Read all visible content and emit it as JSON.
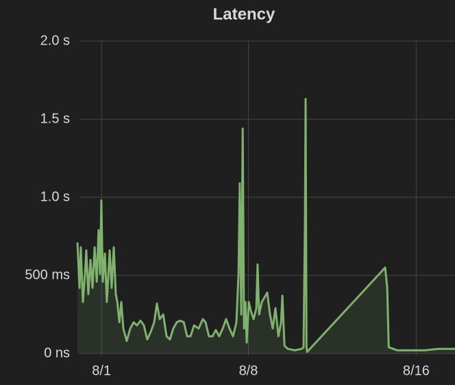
{
  "chart_data": {
    "type": "line",
    "title": "Latency",
    "x": [
      -0.15,
      -0.05,
      0.01,
      0.11,
      0.21,
      0.27,
      0.37,
      0.47,
      0.57,
      0.67,
      0.77,
      0.86,
      0.93,
      0.99,
      1.06,
      1.16,
      1.25,
      1.39,
      1.48,
      1.58,
      1.68,
      1.75,
      1.85,
      1.94,
      2.04,
      2.2,
      2.37,
      2.53,
      2.69,
      2.86,
      3.02,
      3.18,
      3.35,
      3.51,
      3.64,
      3.77,
      3.94,
      4.1,
      4.26,
      4.42,
      4.59,
      4.75,
      4.92,
      5.08,
      5.24,
      5.41,
      5.63,
      5.83,
      5.96,
      6.12,
      6.29,
      6.45,
      6.61,
      6.78,
      6.94,
      7.1,
      7.27,
      7.43,
      7.53,
      7.59,
      7.66,
      7.73,
      7.79,
      7.86,
      7.92,
      8.02,
      8.12,
      8.25,
      8.38,
      8.44,
      8.51,
      8.64,
      8.77,
      8.9,
      9.03,
      9.16,
      9.29,
      9.43,
      9.56,
      9.62,
      9.72,
      9.88,
      10.21,
      10.54,
      10.63,
      10.7,
      10.73,
      10.77,
      10.8,
      14.52,
      14.62,
      14.69,
      15.11,
      15.76,
      16.42,
      17.07,
      17.85
    ],
    "series": [
      {
        "color": "#7eb26d",
        "values": [
          0.71,
          0.42,
          0.68,
          0.33,
          0.51,
          0.66,
          0.38,
          0.6,
          0.42,
          0.68,
          0.46,
          0.79,
          0.51,
          0.98,
          0.46,
          0.64,
          0.33,
          0.66,
          0.42,
          0.68,
          0.38,
          0.33,
          0.2,
          0.33,
          0.16,
          0.08,
          0.16,
          0.2,
          0.18,
          0.21,
          0.18,
          0.09,
          0.14,
          0.2,
          0.32,
          0.22,
          0.25,
          0.11,
          0.09,
          0.16,
          0.2,
          0.21,
          0.2,
          0.11,
          0.11,
          0.18,
          0.16,
          0.22,
          0.2,
          0.11,
          0.11,
          0.15,
          0.11,
          0.16,
          0.22,
          0.16,
          0.11,
          0.2,
          0.51,
          1.09,
          0.25,
          1.44,
          0.16,
          0.33,
          0.07,
          0.33,
          0.27,
          0.22,
          0.29,
          0.57,
          0.25,
          0.33,
          0.36,
          0.39,
          0.25,
          0.16,
          0.29,
          0.11,
          0.2,
          0.37,
          0.05,
          0.03,
          0.02,
          0.03,
          0.04,
          0.86,
          1.63,
          0.04,
          0.01,
          0.55,
          0.42,
          0.04,
          0.02,
          0.02,
          0.02,
          0.03,
          0.03
        ]
      }
    ],
    "xlim": [
      -0.15,
      17.85
    ],
    "xticks": [
      {
        "value": 1,
        "label": "8/1"
      },
      {
        "value": 8,
        "label": "8/8"
      },
      {
        "value": 16,
        "label": "8/16"
      }
    ],
    "ylim": [
      0,
      2
    ],
    "yticks": [
      {
        "value": 0,
        "label": "0 ns"
      },
      {
        "value": 0.5,
        "label": "500 ms"
      },
      {
        "value": 1,
        "label": "1.0 s"
      },
      {
        "value": 1.5,
        "label": "1.5 s"
      },
      {
        "value": 2,
        "label": "2.0 s"
      }
    ],
    "grid": true
  }
}
